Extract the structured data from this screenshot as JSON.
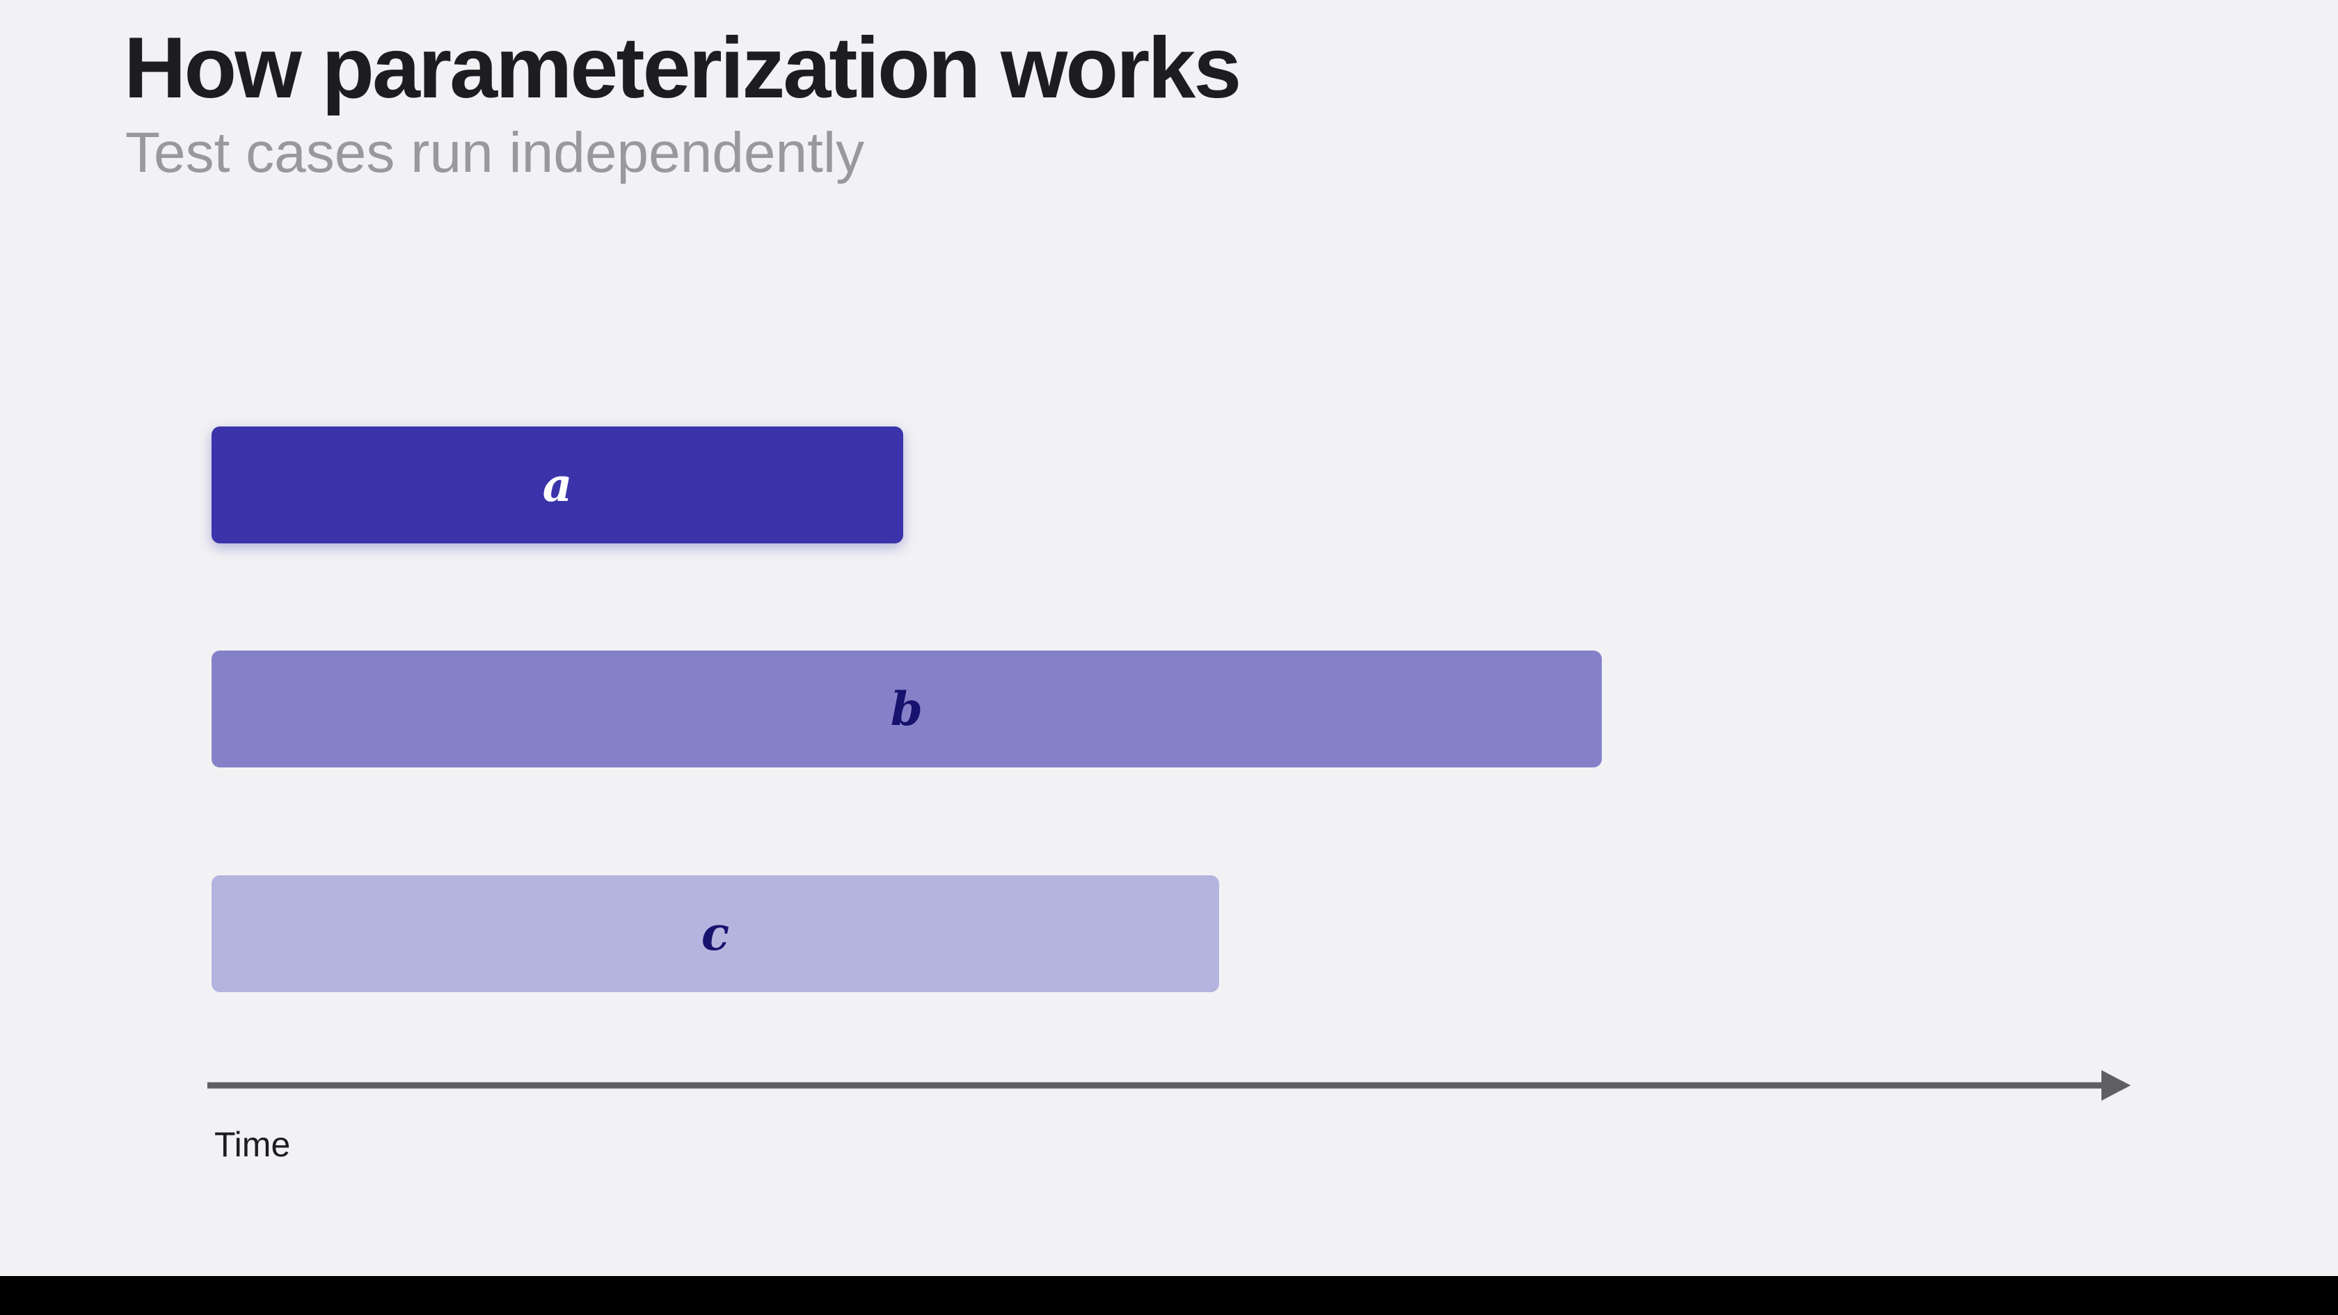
{
  "slide": {
    "title": "How parameterization works",
    "subtitle": "Test cases run independently"
  },
  "diagram": {
    "axis_label": "Time",
    "cases": [
      {
        "label": "a",
        "relative_duration": 0.36,
        "fill": "#3a33aa",
        "text_color": "#ffffff"
      },
      {
        "label": "b",
        "relative_duration": 0.72,
        "fill": "#8581c9",
        "text_color": "#17126e"
      },
      {
        "label": "c",
        "relative_duration": 0.52,
        "fill": "#b5b4de",
        "text_color": "#17126e"
      }
    ],
    "axis_color": "#5f5f63"
  },
  "colors": {
    "background": "#f2f2f4",
    "title": "#1d1d1f",
    "subtitle": "#98989d"
  }
}
